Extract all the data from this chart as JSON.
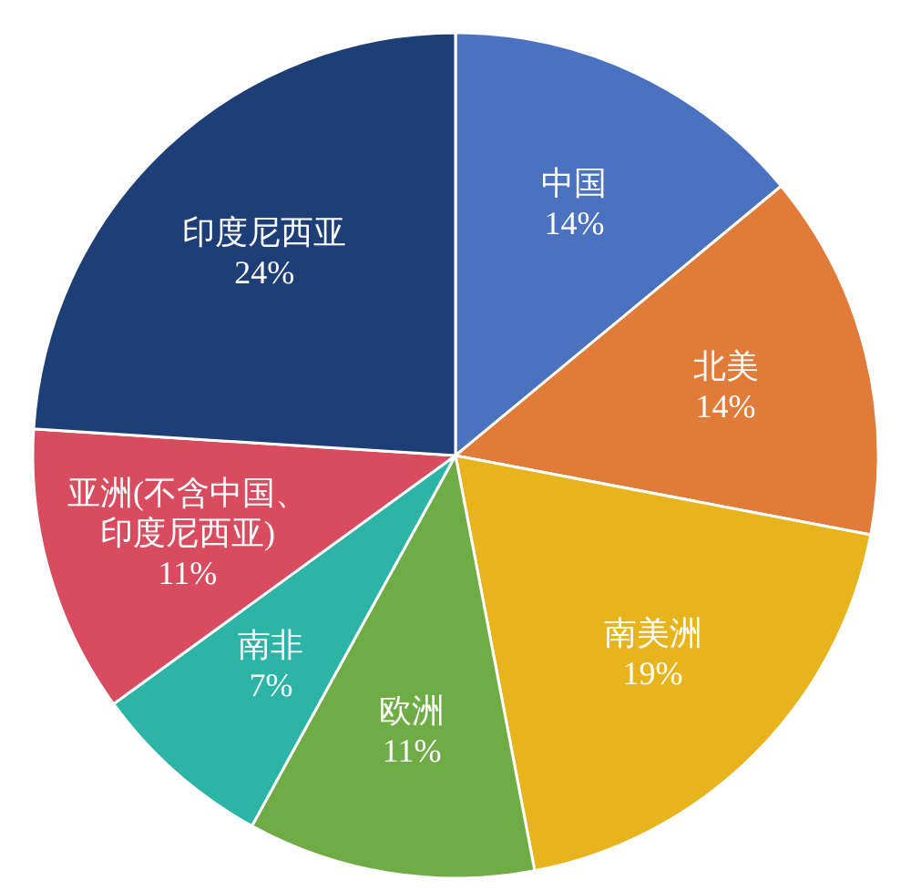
{
  "chart_data": {
    "type": "pie",
    "categories": [
      "中国",
      "北美",
      "南美洲",
      "欧洲",
      "南非",
      "亚洲(不含中国、印度尼西亚)",
      "印度尼西亚"
    ],
    "values": [
      14,
      14,
      19,
      11,
      7,
      11,
      24
    ],
    "colors": [
      "#4a72c0",
      "#e07b39",
      "#e8b41e",
      "#6fac46",
      "#2cb5a6",
      "#d94b5e",
      "#1e3e78"
    ],
    "value_labels": [
      "14%",
      "14%",
      "19%",
      "11%",
      "7%",
      "11%",
      "24%"
    ]
  }
}
